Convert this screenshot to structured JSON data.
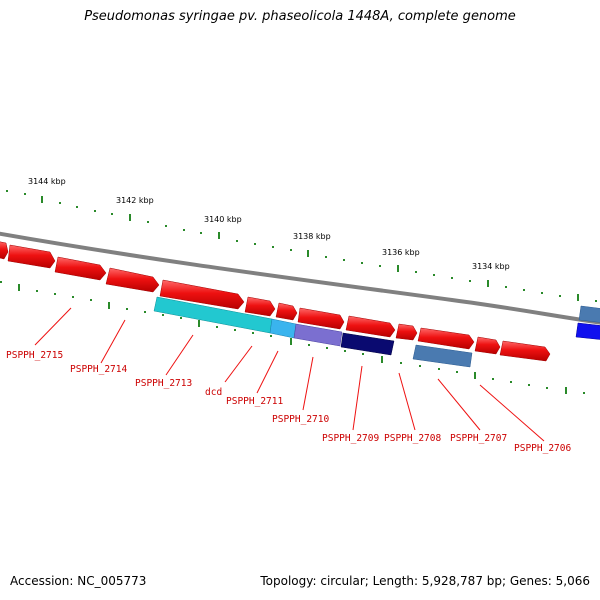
{
  "title": "Pseudomonas syringae pv. phaseolicola 1448A, complete genome",
  "footer": {
    "accession": "Accession: NC_005773",
    "summary": "Topology: circular; Length: 5,928,787 bp; Genes: 5,066"
  },
  "scale_labels": [
    "3144 kbp",
    "3142 kbp",
    "3140 kbp",
    "3138 kbp",
    "3136 kbp",
    "3134 kbp"
  ],
  "gene_labels": [
    "PSPPH_2715",
    "PSPPH_2714",
    "PSPPH_2713",
    "dcd",
    "PSPPH_2711",
    "PSPPH_2710",
    "PSPPH_2709",
    "PSPPH_2708",
    "PSPPH_2707",
    "PSPPH_2706"
  ],
  "colors": {
    "backbone": "#808080",
    "forward_gene": "#ee1111",
    "tick": "#2a8a2a",
    "label": "#cc0000",
    "cyan_gene": "#22c8d0",
    "violet_gene": "#7b6fd0",
    "navy_gene": "#0a0a70",
    "steel_gene": "#4a7ab0",
    "blue_gene": "#1010ee"
  }
}
